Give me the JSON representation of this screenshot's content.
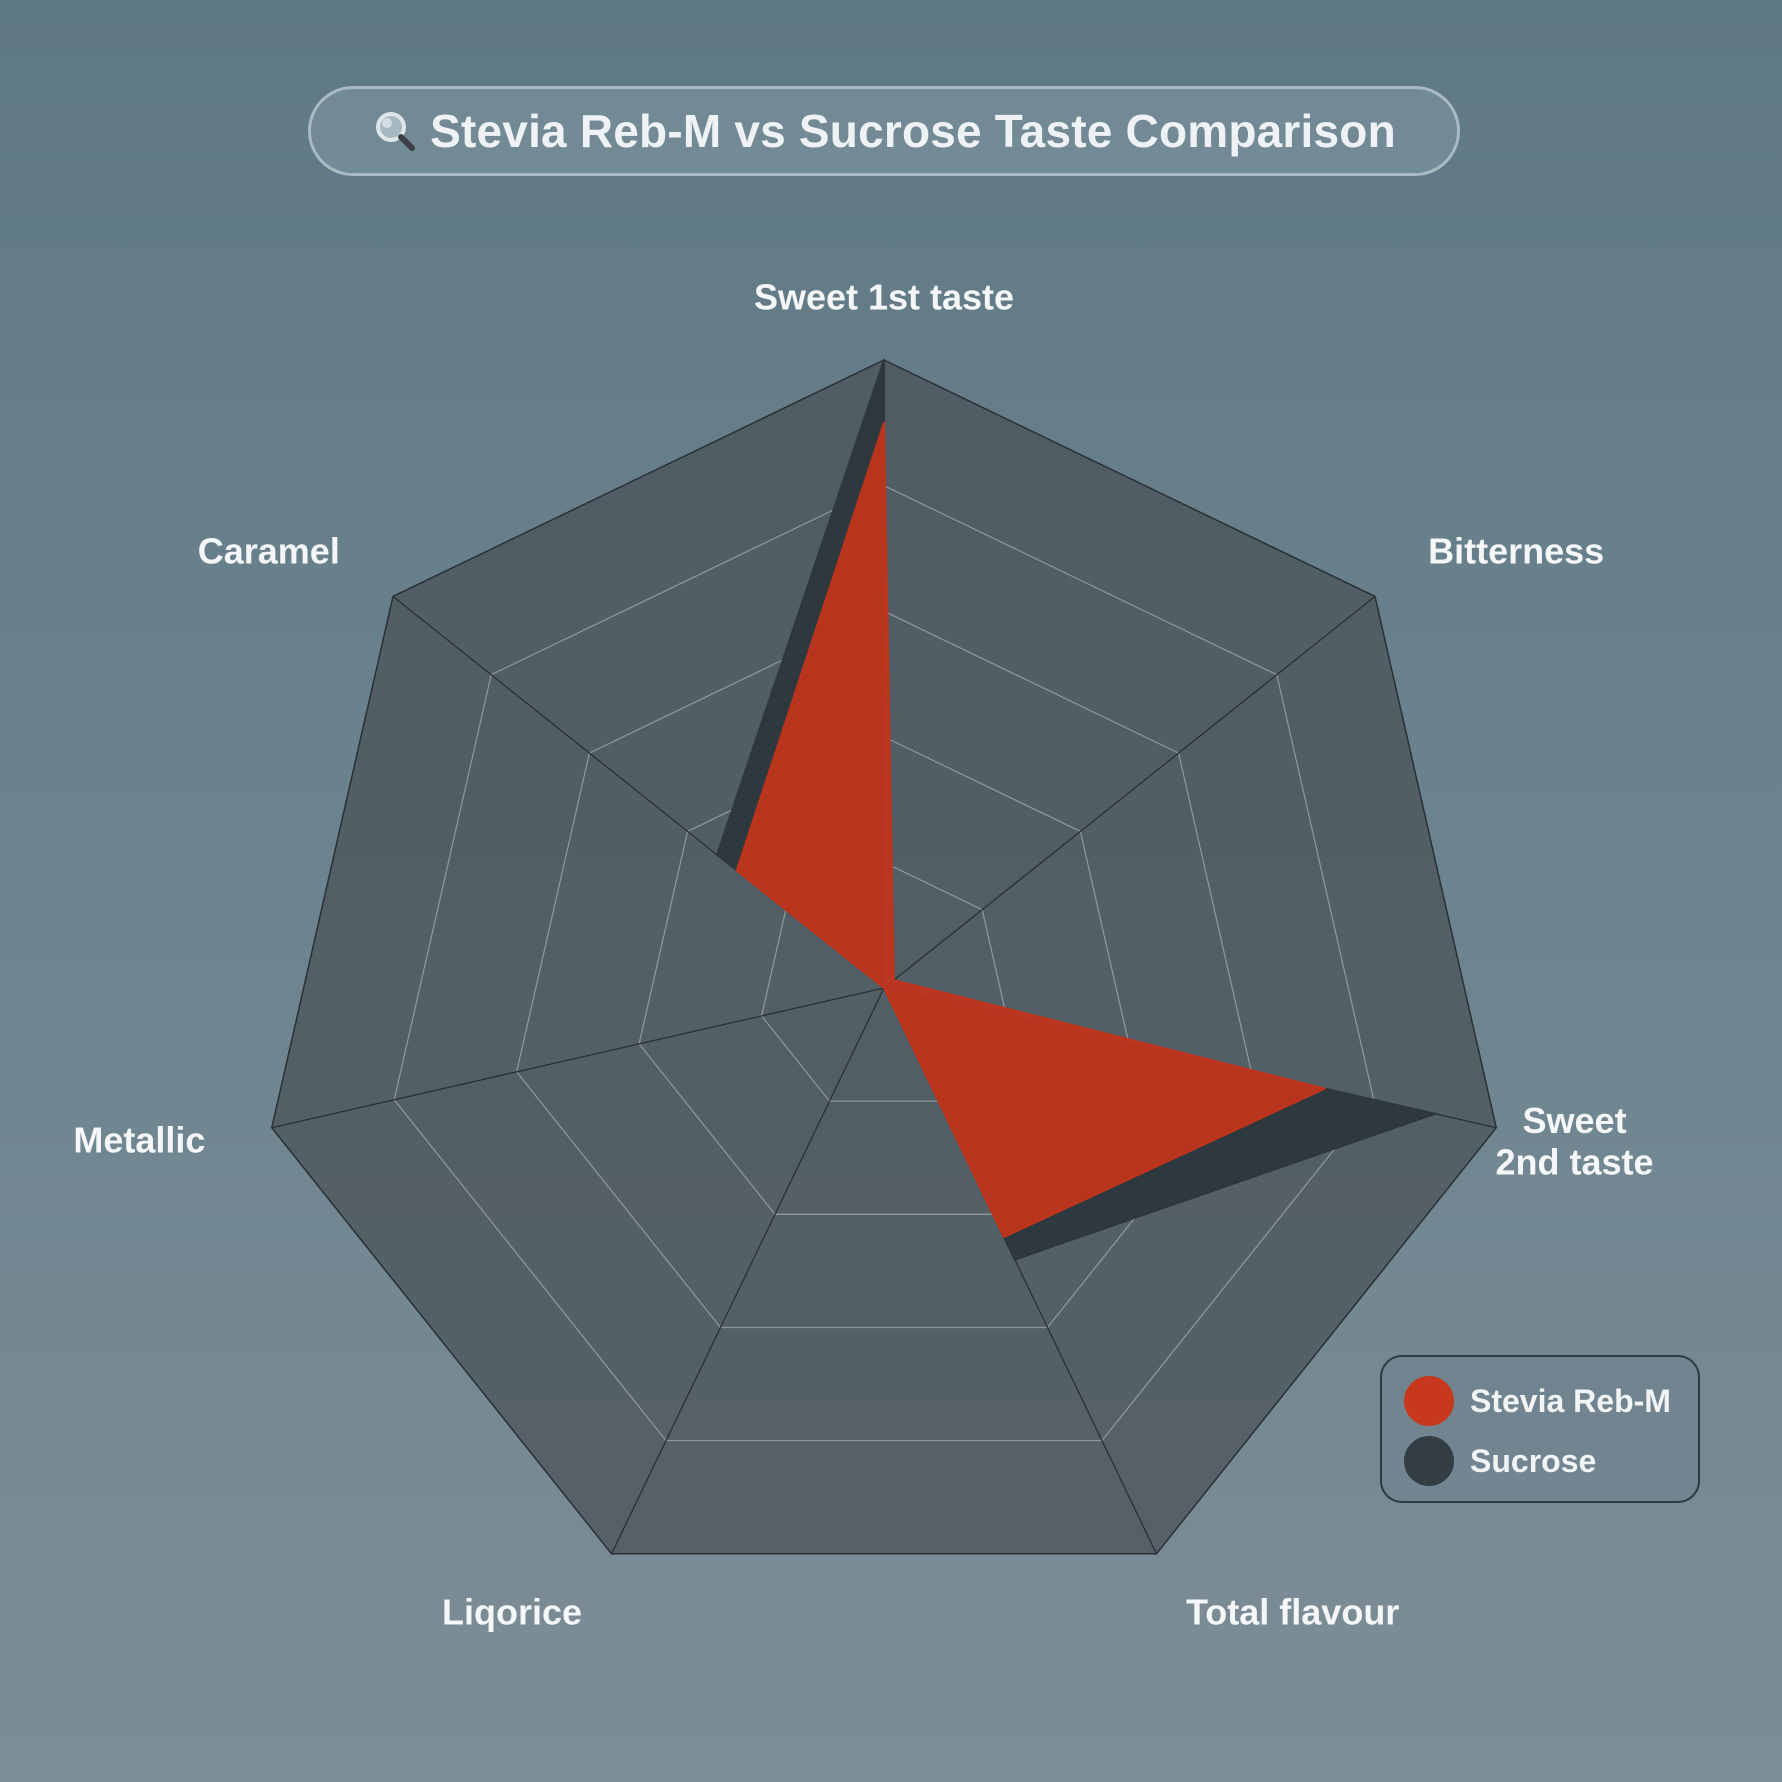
{
  "title": {
    "text": "Stevia Reb-M vs Sucrose Taste Comparison",
    "icon": "magnifier-icon"
  },
  "chart_data": {
    "type": "radar",
    "title": "Stevia Reb-M vs Sucrose Taste Comparison",
    "axes": [
      "Sweet 1st taste",
      "Bitterness",
      "Sweet\n2nd taste",
      "Total flavour",
      "Liqorice",
      "Metallic",
      "Caramel"
    ],
    "range": [
      0,
      5
    ],
    "rings": 5,
    "grid": true,
    "legend_position": "bottom-right",
    "series": [
      {
        "name": "Sucrose",
        "color": "#2d373d",
        "values": [
          5,
          0,
          4.5,
          2.4,
          0,
          0,
          1.7
        ]
      },
      {
        "name": "Stevia Reb-M",
        "color": "#c0341c",
        "values": [
          4.5,
          0.1,
          3.6,
          2.2,
          0,
          0,
          1.5
        ]
      }
    ]
  },
  "legend": {
    "items": [
      {
        "label": "Stevia Reb-M",
        "color": "#c8381f"
      },
      {
        "label": "Sucrose",
        "color": "#323d44"
      }
    ]
  }
}
